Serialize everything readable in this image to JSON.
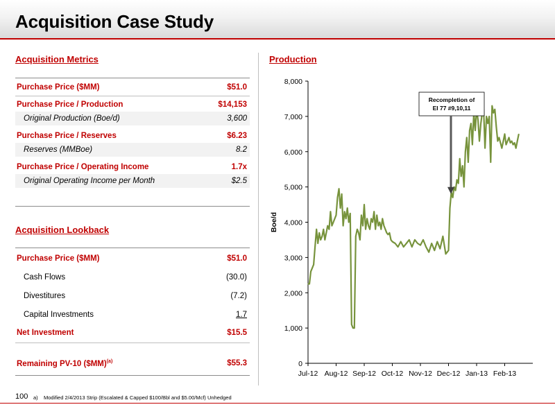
{
  "title": "Acquisition Case Study",
  "metrics": {
    "heading": "Acquisition Metrics",
    "rows": [
      {
        "label": "Purchase Price ($MM)",
        "value": "$51.0"
      },
      {
        "label": "Purchase Price / Production",
        "value": "$14,153"
      },
      {
        "label": "Original Production (Boe/d)",
        "value": "3,600"
      },
      {
        "label": "Purchase Price / Reserves",
        "value": "$6.23"
      },
      {
        "label": "Reserves (MMBoe)",
        "value": "8.2"
      },
      {
        "label": "Purchase Price / Operating Income",
        "value": "1.7x"
      },
      {
        "label": "Original Operating Income per Month",
        "value": "$2.5"
      }
    ]
  },
  "lookback": {
    "heading": "Acquisition Lookback",
    "rows": [
      {
        "label": "Purchase Price ($MM)",
        "value": "$51.0"
      },
      {
        "label": "Cash Flows",
        "value": "(30.0)"
      },
      {
        "label": "Divestitures",
        "value": "(7.2)"
      },
      {
        "label": "Capital Investments",
        "value": "1.7"
      },
      {
        "label": "Net Investment",
        "value": "$15.5"
      },
      {
        "label": "Remaining PV-10 ($MM)",
        "sup": "(a)",
        "value": "$55.3"
      }
    ]
  },
  "footer": {
    "page_number": "100",
    "footnote_marker": "a)",
    "footnote": "Modified 2/4/2013 Strip (Escalated & Capped $100/Bbl and $5.00/Mcf) Unhedged"
  },
  "colors": {
    "accent": "#c00000",
    "series": "#77933c"
  },
  "chart_data": {
    "type": "line",
    "title": "Production",
    "ylabel": "Boe/d",
    "xlabel": "",
    "ylim": [
      0,
      8000
    ],
    "yticks": [
      "0",
      "1,000",
      "2,000",
      "3,000",
      "4,000",
      "5,000",
      "6,000",
      "7,000",
      "8,000"
    ],
    "xticks": [
      "Jul-12",
      "Aug-12",
      "Sep-12",
      "Oct-12",
      "Nov-12",
      "Dec-12",
      "Jan-13",
      "Feb-13"
    ],
    "annotation": {
      "text_line1": "Recompletion of",
      "text_line2": "EI 77 #9,10,11",
      "month": 5.0,
      "value": 4800
    },
    "series": [
      {
        "month": [
          0.0,
          0.05,
          0.1,
          0.15,
          0.2,
          0.25,
          0.3,
          0.35,
          0.4,
          0.45,
          0.5,
          0.55,
          0.6,
          0.65,
          0.7,
          0.75,
          0.8,
          0.85,
          0.9,
          0.95,
          1.0,
          1.05,
          1.1,
          1.15,
          1.2,
          1.25,
          1.3,
          1.35,
          1.4,
          1.45,
          1.5,
          1.55,
          1.6,
          1.65,
          1.7,
          1.75,
          1.8,
          1.85,
          1.9,
          1.95,
          2.0,
          2.05,
          2.1,
          2.15,
          2.2,
          2.25,
          2.3,
          2.35,
          2.4,
          2.45,
          2.5,
          2.55,
          2.6,
          2.65,
          2.7,
          2.75,
          2.8,
          2.85,
          2.9,
          2.95,
          3.0,
          3.1,
          3.2,
          3.3,
          3.4,
          3.5,
          3.6,
          3.7,
          3.8,
          3.9,
          4.0,
          4.1,
          4.2,
          4.3,
          4.4,
          4.5,
          4.6,
          4.7,
          4.8,
          4.9,
          5.0,
          5.05,
          5.1,
          5.15,
          5.2,
          5.25,
          5.3,
          5.35,
          5.4,
          5.45,
          5.5,
          5.55,
          5.6,
          5.65,
          5.7,
          5.75,
          5.8,
          5.85,
          5.9,
          5.95,
          6.0,
          6.05,
          6.1,
          6.15,
          6.2,
          6.25,
          6.3,
          6.35,
          6.4,
          6.45,
          6.5,
          6.55,
          6.6,
          6.65,
          6.7,
          6.75,
          6.8,
          6.85,
          6.9,
          6.95,
          7.0,
          7.05,
          7.1,
          7.15,
          7.2,
          7.25,
          7.3,
          7.35,
          7.4,
          7.45,
          7.5
        ],
        "values": [
          2250,
          2250,
          2600,
          2700,
          2800,
          3300,
          3800,
          3400,
          3700,
          3500,
          3600,
          3800,
          3500,
          3700,
          3900,
          3800,
          4300,
          3900,
          4000,
          4100,
          4200,
          4700,
          4950,
          4400,
          4800,
          3900,
          4300,
          4100,
          4400,
          4000,
          4250,
          1100,
          1000,
          1000,
          3600,
          3800,
          3700,
          3500,
          4200,
          3900,
          4500,
          3800,
          4100,
          3900,
          3800,
          4100,
          4000,
          4300,
          3800,
          4200,
          3900,
          4000,
          3800,
          4100,
          3900,
          3800,
          3700,
          3650,
          3700,
          3500,
          3450,
          3400,
          3300,
          3450,
          3300,
          3400,
          3500,
          3300,
          3500,
          3400,
          3350,
          3500,
          3300,
          3150,
          3400,
          3200,
          3450,
          3250,
          3600,
          3100,
          3200,
          4400,
          4850,
          4700,
          5000,
          4900,
          5200,
          5100,
          5800,
          5300,
          5600,
          5000,
          6000,
          6400,
          5700,
          6600,
          6800,
          6200,
          7100,
          6600,
          7200,
          6900,
          6300,
          6800,
          7100,
          7200,
          6100,
          7000,
          6800,
          7000,
          5700,
          7300,
          7100,
          7200,
          6700,
          6300,
          6400,
          6250,
          6100,
          6300,
          6500,
          6200,
          6300,
          6400,
          6250,
          6300,
          6200,
          6250,
          6100,
          6300,
          6500
        ]
      }
    ]
  }
}
